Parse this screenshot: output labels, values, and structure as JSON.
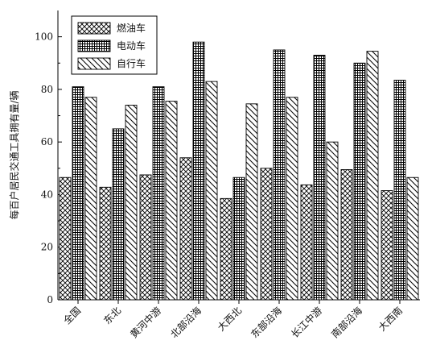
{
  "chart_data": {
    "type": "bar",
    "title": "",
    "xlabel": "",
    "ylabel": "每百户居民交通工具拥有量/辆",
    "ylim": [
      0,
      110
    ],
    "yticks": [
      0,
      20,
      40,
      60,
      80,
      100
    ],
    "grid": false,
    "legend_position": "top-left",
    "categories": [
      "全国",
      "东北",
      "黄河中游",
      "北部沿海",
      "大西北",
      "东部沿海",
      "长江中游",
      "南部沿海",
      "大西南"
    ],
    "series": [
      {
        "name": "燃油车",
        "pattern": "crosshatch",
        "values": [
          46.5,
          42.8,
          47.5,
          54,
          38.5,
          50,
          43.7,
          49.5,
          41.5
        ]
      },
      {
        "name": "电动车",
        "pattern": "grid",
        "values": [
          81,
          65,
          81,
          98,
          46.5,
          95,
          93,
          90,
          83.5
        ]
      },
      {
        "name": "自行车",
        "pattern": "diagonal",
        "values": [
          77,
          74,
          75.5,
          83,
          74.5,
          77,
          60,
          94.5,
          46.5
        ]
      }
    ],
    "colors": {
      "stroke": "#000000",
      "fill": "#ffffff"
    }
  }
}
